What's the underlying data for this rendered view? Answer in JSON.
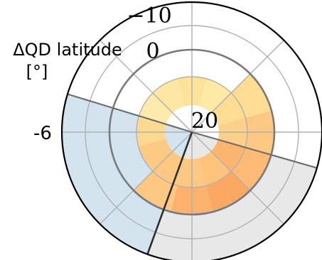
{
  "chart_data": {
    "type": "heatmap",
    "projection": "polar",
    "title": "",
    "ylabel_line1": "ΔQD latitude",
    "ylabel_line2": "[°]",
    "ring_tick_labels": [
      "−10",
      "0",
      "20"
    ],
    "color_tick_label": "-6",
    "sector_count": 12,
    "sector_angle_deg": 30,
    "rings": [
      {
        "name": "inner",
        "values": [
          0.18,
          0.32,
          0.42,
          0.66,
          0.55,
          0.5,
          0.5,
          0.48,
          0.35,
          0.14,
          0.2,
          0.26
        ]
      },
      {
        "name": "outer",
        "values": [
          null,
          0.32,
          0.5,
          0.62,
          0.78,
          0.68,
          0.5,
          null,
          null,
          null,
          null,
          null
        ]
      }
    ],
    "shaded_regions": [
      {
        "name": "grey-sector",
        "color": "#e8e8e8"
      },
      {
        "name": "blue-sector",
        "color": "#d3e4ef"
      }
    ],
    "colormap": [
      "#fff5c0",
      "#fde49a",
      "#fdc882",
      "#fcaa64",
      "#f99b59"
    ],
    "grid": true
  }
}
